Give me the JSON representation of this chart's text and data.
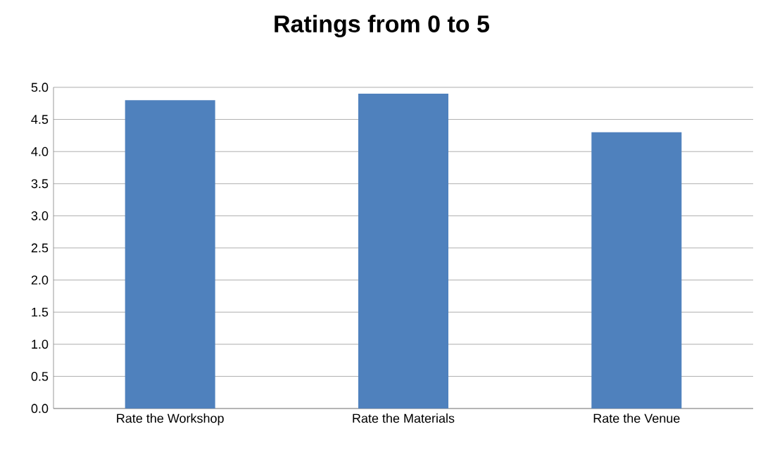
{
  "chart_data": {
    "type": "bar",
    "title": "Ratings from 0 to 5",
    "categories": [
      "Rate the Workshop",
      "Rate the Materials",
      "Rate the Venue"
    ],
    "values": [
      4.8,
      4.9,
      4.3
    ],
    "color": "#4f81bd",
    "ylim": [
      0,
      5
    ],
    "yticks": [
      {
        "value": 0,
        "label": "0.0"
      },
      {
        "value": 0.5,
        "label": "0.5"
      },
      {
        "value": 1,
        "label": "1.0"
      },
      {
        "value": 1.5,
        "label": "1.5"
      },
      {
        "value": 2,
        "label": "2.0"
      },
      {
        "value": 2.5,
        "label": "2.5"
      },
      {
        "value": 3,
        "label": "3.0"
      },
      {
        "value": 3.5,
        "label": "3.5"
      },
      {
        "value": 4,
        "label": "4.0"
      },
      {
        "value": 4.5,
        "label": "4.5"
      },
      {
        "value": 5,
        "label": "5.0"
      }
    ],
    "grid": "y"
  }
}
